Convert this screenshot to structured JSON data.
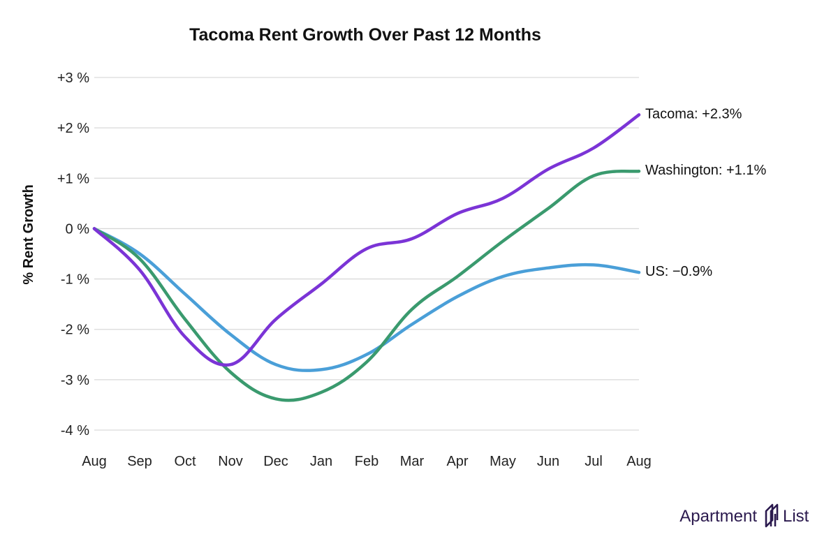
{
  "chart_data": {
    "type": "line",
    "title": "Tacoma Rent Growth Over Past 12 Months",
    "xlabel": "",
    "ylabel": "% Rent Growth",
    "categories": [
      "Aug",
      "Sep",
      "Oct",
      "Nov",
      "Dec",
      "Jan",
      "Feb",
      "Mar",
      "Apr",
      "May",
      "Jun",
      "Jul",
      "Aug"
    ],
    "yticks": [
      {
        "value": 3,
        "label": "+3 %"
      },
      {
        "value": 2,
        "label": "+2 %"
      },
      {
        "value": 1,
        "label": "+1 %"
      },
      {
        "value": 0,
        "label": "0 %"
      },
      {
        "value": -1,
        "label": "-1 %"
      },
      {
        "value": -2,
        "label": "-2 %"
      },
      {
        "value": -3,
        "label": "-3 %"
      },
      {
        "value": -4,
        "label": "-4 %"
      }
    ],
    "ylim": [
      -4,
      3
    ],
    "grid": true,
    "legend": "end-of-line labels",
    "series": [
      {
        "name": "US",
        "end_label": "US: −0.9%",
        "color": "#4a9fd8",
        "values": [
          0,
          -0.5,
          -1.3,
          -2.1,
          -2.7,
          -2.8,
          -2.5,
          -1.9,
          -1.35,
          -0.95,
          -0.78,
          -0.72,
          -0.87
        ]
      },
      {
        "name": "Washington",
        "end_label": "Washington: +1.1%",
        "color": "#3a9a6e",
        "values": [
          0,
          -0.6,
          -1.8,
          -2.85,
          -3.38,
          -3.25,
          -2.65,
          -1.6,
          -0.95,
          -0.25,
          0.4,
          1.05,
          1.14
        ]
      },
      {
        "name": "Tacoma",
        "end_label": "Tacoma: +2.3%",
        "color": "#7b34d6",
        "values": [
          0,
          -0.82,
          -2.15,
          -2.7,
          -1.8,
          -1.1,
          -0.4,
          -0.2,
          0.3,
          0.6,
          1.18,
          1.6,
          2.26
        ]
      }
    ]
  },
  "brand": {
    "left": "Apartment",
    "right": "List",
    "color": "#2b1a4e"
  }
}
